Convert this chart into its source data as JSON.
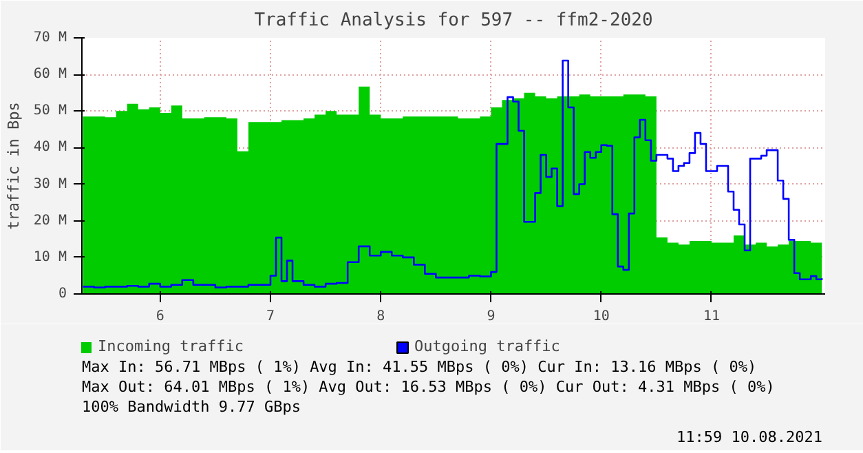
{
  "chart_data": {
    "type": "area",
    "title": "Traffic Analysis for 597 -- ffm2-2020",
    "ylabel": "traffic in Bps",
    "xlim": [
      5.29,
      12.03
    ],
    "xticks": [
      6,
      7,
      8,
      9,
      10,
      11
    ],
    "ylim": [
      0,
      70
    ],
    "yticks": [
      0,
      {
        "value": 10,
        "label": "10 M"
      },
      {
        "value": 20,
        "label": "20 M"
      },
      {
        "value": 30,
        "label": "30 M"
      },
      {
        "value": 40,
        "label": "40 M"
      },
      {
        "value": 50,
        "label": "50 M"
      },
      {
        "value": 60,
        "label": "60 M"
      },
      {
        "value": 70,
        "label": "70 M"
      }
    ],
    "grid": true,
    "legend": "bottom",
    "series": [
      {
        "name": "Incoming traffic",
        "color": "#00cc00",
        "x": [
          5.3,
          5.4,
          5.5,
          5.6,
          5.7,
          5.8,
          5.9,
          6.0,
          6.1,
          6.2,
          6.3,
          6.4,
          6.5,
          6.6,
          6.7,
          6.8,
          6.9,
          7.0,
          7.1,
          7.2,
          7.3,
          7.4,
          7.5,
          7.6,
          7.7,
          7.8,
          7.9,
          8.0,
          8.1,
          8.2,
          8.3,
          8.4,
          8.5,
          8.6,
          8.7,
          8.8,
          8.9,
          9.0,
          9.1,
          9.2,
          9.3,
          9.4,
          9.5,
          9.6,
          9.7,
          9.8,
          9.9,
          10.0,
          10.1,
          10.2,
          10.3,
          10.4,
          10.5,
          10.6,
          10.7,
          10.8,
          10.9,
          11.0,
          11.1,
          11.2,
          11.3,
          11.4,
          11.5,
          11.6,
          11.7,
          11.8,
          11.9,
          12.0
        ],
        "values": [
          48.5,
          48.5,
          48.3,
          50,
          52,
          50.5,
          51,
          49.5,
          51.5,
          48,
          48,
          48.3,
          48.3,
          48,
          39,
          47,
          47,
          47,
          47.5,
          47.5,
          48,
          49,
          50,
          49,
          49,
          56.7,
          49,
          48,
          48,
          48.5,
          48.5,
          48.5,
          48.5,
          48.5,
          48,
          48,
          48.5,
          51,
          53,
          53.5,
          55,
          54,
          53.5,
          54,
          54,
          54.5,
          54,
          54,
          54,
          54.5,
          54.5,
          54,
          15.5,
          14,
          13.5,
          14.5,
          14.5,
          14,
          14,
          16,
          13.5,
          14,
          13,
          13.5,
          14.5,
          14.5,
          14,
          13
        ]
      },
      {
        "name": "Outgoing traffic",
        "type": "step",
        "color": "#0000ff",
        "x": [
          5.3,
          5.4,
          5.5,
          5.6,
          5.7,
          5.8,
          5.9,
          6.0,
          6.1,
          6.2,
          6.3,
          6.4,
          6.5,
          6.6,
          6.7,
          6.8,
          6.9,
          7.0,
          7.05,
          7.1,
          7.15,
          7.2,
          7.3,
          7.4,
          7.5,
          7.6,
          7.7,
          7.8,
          7.9,
          8.0,
          8.1,
          8.2,
          8.3,
          8.4,
          8.5,
          8.6,
          8.7,
          8.8,
          8.9,
          9.0,
          9.05,
          9.15,
          9.2,
          9.25,
          9.3,
          9.4,
          9.45,
          9.5,
          9.55,
          9.6,
          9.65,
          9.7,
          9.75,
          9.8,
          9.85,
          9.9,
          9.95,
          10.0,
          10.05,
          10.1,
          10.15,
          10.2,
          10.25,
          10.3,
          10.35,
          10.4,
          10.45,
          10.5,
          10.55,
          10.6,
          10.65,
          10.7,
          10.75,
          10.8,
          10.85,
          10.9,
          10.95,
          11.05,
          11.15,
          11.2,
          11.25,
          11.3,
          11.35,
          11.45,
          11.5,
          11.6,
          11.65,
          11.7,
          11.75,
          11.8,
          11.9,
          11.95,
          12.0
        ],
        "values": [
          2,
          1.8,
          2,
          2,
          2.2,
          2,
          2.8,
          2,
          2.5,
          3.8,
          2.5,
          2.5,
          1.8,
          2,
          2,
          2.5,
          2.5,
          5,
          15.4,
          3.5,
          9.1,
          3.5,
          2.5,
          2,
          2.8,
          3,
          8.7,
          13,
          10.5,
          11.5,
          10.5,
          10,
          8,
          5.5,
          4.5,
          4.5,
          4.5,
          5,
          4.8,
          6,
          41,
          53.8,
          52.6,
          44.6,
          19.7,
          27.6,
          38,
          32,
          34.3,
          24,
          63.8,
          51,
          27.3,
          30,
          38.8,
          37.2,
          38.8,
          40.7,
          40.5,
          21.8,
          7.5,
          6.6,
          22,
          42.8,
          47.6,
          42,
          36.4,
          38,
          38,
          37,
          33.6,
          35,
          35.8,
          38.5,
          44,
          41,
          33.6,
          35,
          28,
          23,
          19,
          11.9,
          37,
          37.8,
          39.3,
          31,
          26,
          14.8,
          5.7,
          4,
          4.9,
          4,
          4.3
        ]
      }
    ],
    "annotations": [
      "Max In:  56.71 MBps ( 1%)  Avg In:  41.55 MBps ( 0%)  Cur In:  13.16 MBps ( 0%)",
      "Max Out: 64.01 MBps ( 1%)  Avg Out: 16.53 MBps ( 0%)  Cur Out:  4.31 MBps ( 0%)",
      "100% Bandwidth 9.77 GBps",
      "11:59 10.08.2021"
    ]
  }
}
